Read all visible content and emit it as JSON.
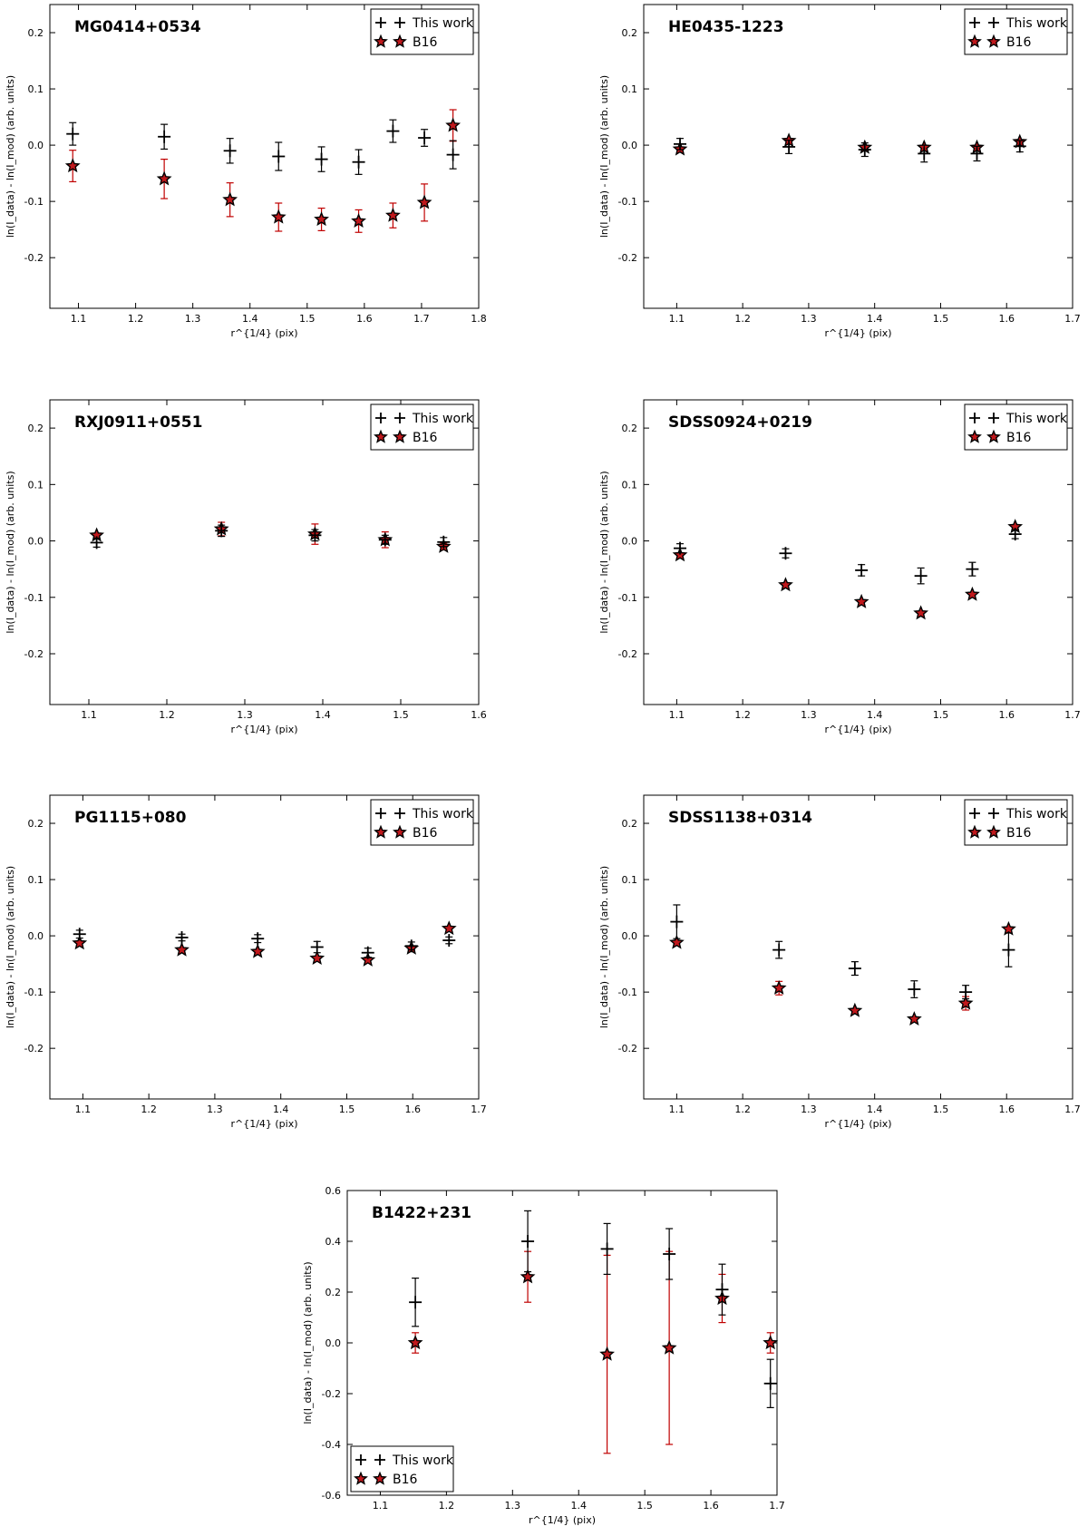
{
  "chart_data": [
    {
      "type": "scatter",
      "title": "MG0414+0534",
      "xlabel": "r^{1/4} (pix)",
      "ylabel": "ln(I_data) - ln(I_mod) (arb. units)",
      "xlim": [
        1.05,
        1.8
      ],
      "ylim": [
        -0.29,
        0.25
      ],
      "xticks": [
        1.1,
        1.2,
        1.3,
        1.4,
        1.5,
        1.6,
        1.7,
        1.8
      ],
      "yticks": [
        -0.2,
        -0.1,
        0.0,
        0.1,
        0.2
      ],
      "legend": {
        "position": "top-right",
        "entries": [
          "This work",
          "B16"
        ]
      },
      "series": [
        {
          "name": "This work",
          "marker": "plus",
          "x": [
            1.09,
            1.25,
            1.365,
            1.45,
            1.525,
            1.59,
            1.65,
            1.705,
            1.755
          ],
          "y": [
            0.02,
            0.015,
            -0.01,
            -0.02,
            -0.025,
            -0.03,
            0.025,
            0.013,
            -0.017
          ],
          "err": [
            0.02,
            0.022,
            0.022,
            0.025,
            0.022,
            0.022,
            0.02,
            0.015,
            0.025
          ]
        },
        {
          "name": "B16",
          "marker": "star",
          "x": [
            1.09,
            1.25,
            1.365,
            1.45,
            1.525,
            1.59,
            1.65,
            1.705,
            1.755
          ],
          "y": [
            -0.037,
            -0.06,
            -0.097,
            -0.128,
            -0.132,
            -0.135,
            -0.125,
            -0.102,
            0.035
          ],
          "err": [
            0.028,
            0.035,
            0.03,
            0.025,
            0.02,
            0.02,
            0.022,
            0.033,
            0.028
          ]
        }
      ]
    },
    {
      "type": "scatter",
      "title": "HE0435-1223",
      "xlabel": "r^{1/4} (pix)",
      "ylabel": "ln(I_data) - ln(I_mod) (arb. units)",
      "xlim": [
        1.05,
        1.7
      ],
      "ylim": [
        -0.29,
        0.25
      ],
      "xticks": [
        1.1,
        1.2,
        1.3,
        1.4,
        1.5,
        1.6,
        1.7
      ],
      "yticks": [
        -0.2,
        -0.1,
        0.0,
        0.1,
        0.2
      ],
      "legend": {
        "position": "top-right",
        "entries": [
          "This work",
          "B16"
        ]
      },
      "series": [
        {
          "name": "This work",
          "marker": "plus",
          "x": [
            1.105,
            1.27,
            1.385,
            1.475,
            1.555,
            1.62
          ],
          "y": [
            0.002,
            -0.003,
            -0.008,
            -0.015,
            -0.015,
            -0.002
          ],
          "err": [
            0.01,
            0.012,
            0.012,
            0.015,
            0.013,
            0.01
          ]
        },
        {
          "name": "B16",
          "marker": "star",
          "x": [
            1.105,
            1.27,
            1.385,
            1.475,
            1.555,
            1.62
          ],
          "y": [
            -0.007,
            0.008,
            -0.004,
            -0.004,
            -0.004,
            0.006
          ],
          "err": [
            0.0,
            0.0,
            0.0,
            0.0,
            0.0,
            0.0
          ]
        }
      ]
    },
    {
      "type": "scatter",
      "title": "RXJ0911+0551",
      "xlabel": "r^{1/4} (pix)",
      "ylabel": "ln(I_data) - ln(I_mod) (arb. units)",
      "xlim": [
        1.05,
        1.6
      ],
      "ylim": [
        -0.29,
        0.25
      ],
      "xticks": [
        1.1,
        1.2,
        1.3,
        1.4,
        1.5,
        1.6
      ],
      "yticks": [
        -0.2,
        -0.1,
        0.0,
        0.1,
        0.2
      ],
      "legend": {
        "position": "top-right",
        "entries": [
          "This work",
          "B16"
        ]
      },
      "series": [
        {
          "name": "This work",
          "marker": "plus",
          "x": [
            1.11,
            1.27,
            1.39,
            1.48,
            1.555
          ],
          "y": [
            -0.003,
            0.018,
            0.01,
            0.002,
            -0.002
          ],
          "err": [
            0.008,
            0.01,
            0.01,
            0.008,
            0.008
          ]
        },
        {
          "name": "B16",
          "marker": "star",
          "x": [
            1.11,
            1.27,
            1.39,
            1.48,
            1.555
          ],
          "y": [
            0.01,
            0.021,
            0.012,
            0.002,
            -0.01
          ],
          "err": [
            0.0,
            0.012,
            0.018,
            0.014,
            0.006
          ]
        }
      ]
    },
    {
      "type": "scatter",
      "title": "SDSS0924+0219",
      "xlabel": "r^{1/4} (pix)",
      "ylabel": "ln(I_data) - ln(I_mod) (arb. units)",
      "xlim": [
        1.05,
        1.7
      ],
      "ylim": [
        -0.29,
        0.25
      ],
      "xticks": [
        1.1,
        1.2,
        1.3,
        1.4,
        1.5,
        1.6,
        1.7
      ],
      "yticks": [
        -0.2,
        -0.1,
        0.0,
        0.1,
        0.2
      ],
      "legend": {
        "position": "top-right",
        "entries": [
          "This work",
          "B16"
        ]
      },
      "series": [
        {
          "name": "This work",
          "marker": "plus",
          "x": [
            1.105,
            1.265,
            1.38,
            1.47,
            1.548,
            1.613
          ],
          "y": [
            -0.013,
            -0.022,
            -0.052,
            -0.062,
            -0.05,
            0.012
          ],
          "err": [
            0.008,
            0.008,
            0.01,
            0.014,
            0.012,
            0.008
          ]
        },
        {
          "name": "B16",
          "marker": "star",
          "x": [
            1.105,
            1.265,
            1.38,
            1.47,
            1.548,
            1.613
          ],
          "y": [
            -0.025,
            -0.078,
            -0.108,
            -0.128,
            -0.095,
            0.025
          ],
          "err": [
            0.0,
            0.0,
            0.0,
            0.0,
            0.0,
            0.0
          ]
        }
      ]
    },
    {
      "type": "scatter",
      "title": "PG1115+080",
      "xlabel": "r^{1/4} (pix)",
      "ylabel": "ln(I_data) - ln(I_mod) (arb. units)",
      "xlim": [
        1.05,
        1.7
      ],
      "ylim": [
        -0.29,
        0.25
      ],
      "xticks": [
        1.1,
        1.2,
        1.3,
        1.4,
        1.5,
        1.6,
        1.7
      ],
      "yticks": [
        -0.2,
        -0.1,
        0.0,
        0.1,
        0.2
      ],
      "legend": {
        "position": "top-right",
        "entries": [
          "This work",
          "B16"
        ]
      },
      "series": [
        {
          "name": "This work",
          "marker": "plus",
          "x": [
            1.095,
            1.25,
            1.365,
            1.455,
            1.532,
            1.598,
            1.655
          ],
          "y": [
            0.003,
            -0.003,
            -0.005,
            -0.02,
            -0.03,
            -0.018,
            -0.008
          ],
          "err": [
            0.007,
            0.006,
            0.007,
            0.01,
            0.008,
            0.007,
            0.006
          ]
        },
        {
          "name": "B16",
          "marker": "star",
          "x": [
            1.095,
            1.25,
            1.365,
            1.455,
            1.532,
            1.598,
            1.655
          ],
          "y": [
            -0.013,
            -0.025,
            -0.028,
            -0.04,
            -0.043,
            -0.022,
            0.013
          ],
          "err": [
            0.0,
            0.0,
            0.0,
            0.0,
            0.0,
            0.0,
            0.0
          ]
        }
      ]
    },
    {
      "type": "scatter",
      "title": "SDSS1138+0314",
      "xlabel": "r^{1/4} (pix)",
      "ylabel": "ln(I_data) - ln(I_mod) (arb. units)",
      "xlim": [
        1.05,
        1.7
      ],
      "ylim": [
        -0.29,
        0.25
      ],
      "xticks": [
        1.1,
        1.2,
        1.3,
        1.4,
        1.5,
        1.6,
        1.7
      ],
      "yticks": [
        -0.2,
        -0.1,
        0.0,
        0.1,
        0.2
      ],
      "legend": {
        "position": "top-right",
        "entries": [
          "This work",
          "B16"
        ]
      },
      "series": [
        {
          "name": "This work",
          "marker": "plus",
          "x": [
            1.1,
            1.255,
            1.37,
            1.46,
            1.538,
            1.603
          ],
          "y": [
            0.025,
            -0.025,
            -0.058,
            -0.095,
            -0.1,
            -0.025
          ],
          "err": [
            0.03,
            0.015,
            0.012,
            0.015,
            0.012,
            0.03
          ]
        },
        {
          "name": "B16",
          "marker": "star",
          "x": [
            1.1,
            1.255,
            1.37,
            1.46,
            1.538,
            1.603
          ],
          "y": [
            -0.012,
            -0.093,
            -0.133,
            -0.148,
            -0.12,
            0.012
          ],
          "err": [
            0.0,
            0.012,
            0.0,
            0.0,
            0.012,
            0.0
          ]
        }
      ]
    },
    {
      "type": "scatter",
      "title": "B1422+231",
      "xlabel": "r^{1/4} (pix)",
      "ylabel": "ln(I_data) - ln(I_mod) (arb. units)",
      "xlim": [
        1.05,
        1.7
      ],
      "ylim": [
        -0.6,
        0.6
      ],
      "xticks": [
        1.1,
        1.2,
        1.3,
        1.4,
        1.5,
        1.6,
        1.7
      ],
      "yticks": [
        -0.6,
        -0.4,
        -0.2,
        0.0,
        0.2,
        0.4,
        0.6
      ],
      "legend": {
        "position": "bottom-left",
        "entries": [
          "This work",
          "B16"
        ]
      },
      "series": [
        {
          "name": "This work",
          "marker": "plus",
          "x": [
            1.153,
            1.323,
            1.443,
            1.537,
            1.617,
            1.69
          ],
          "y": [
            0.16,
            0.4,
            0.37,
            0.35,
            0.21,
            -0.16
          ],
          "err": [
            0.095,
            0.12,
            0.1,
            0.1,
            0.1,
            0.095
          ]
        },
        {
          "name": "B16",
          "marker": "star",
          "x": [
            1.153,
            1.323,
            1.443,
            1.537,
            1.617,
            1.69
          ],
          "y": [
            0.0,
            0.26,
            -0.045,
            -0.02,
            0.175,
            0.0
          ],
          "err": [
            0.04,
            0.1,
            0.39,
            0.38,
            0.095,
            0.04
          ]
        }
      ]
    }
  ]
}
